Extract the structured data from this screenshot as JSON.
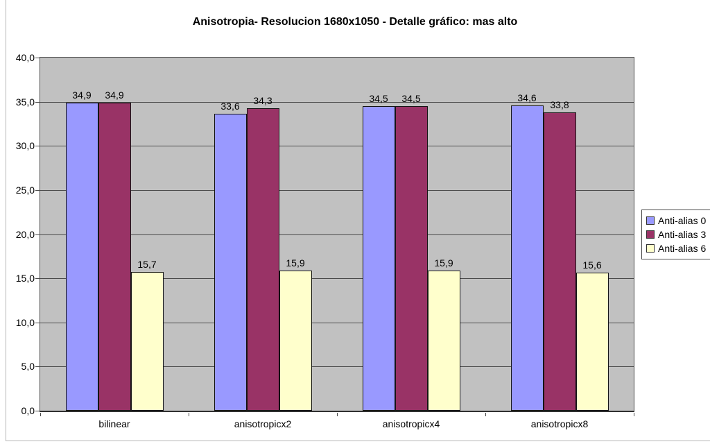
{
  "chart_data": {
    "type": "bar",
    "title": "Anisotropia- Resolucion 1680x1050 - Detalle gráfico: mas alto",
    "categories": [
      "bilinear",
      "anisotropicx2",
      "anisotropicx4",
      "anisotropicx8"
    ],
    "series": [
      {
        "name": "Anti-alias 0",
        "color": "#9999ff",
        "values": [
          34.9,
          33.6,
          34.5,
          34.6
        ],
        "labels": [
          "34,9",
          "33,6",
          "34,5",
          "34,6"
        ]
      },
      {
        "name": "Anti-alias 3",
        "color": "#993366",
        "values": [
          34.9,
          34.3,
          34.5,
          33.8
        ],
        "labels": [
          "34,9",
          "34,3",
          "34,5",
          "33,8"
        ]
      },
      {
        "name": "Anti-alias 6",
        "color": "#ffffcc",
        "values": [
          15.7,
          15.9,
          15.9,
          15.6
        ],
        "labels": [
          "15,7",
          "15,9",
          "15,9",
          "15,6"
        ]
      }
    ],
    "xlabel": "",
    "ylabel": "",
    "ylim": [
      0,
      40
    ],
    "ytick_step": 5,
    "ytick_labels": [
      "0,0",
      "5,0",
      "10,0",
      "15,0",
      "20,0",
      "25,0",
      "30,0",
      "35,0",
      "40,0"
    ],
    "decimal_separator": ",",
    "grid": true,
    "legend_position": "right",
    "plot_bg_color": "#c1c1c1",
    "gridline_color": "#4a4a4a",
    "bar_border_color": "#141414"
  }
}
